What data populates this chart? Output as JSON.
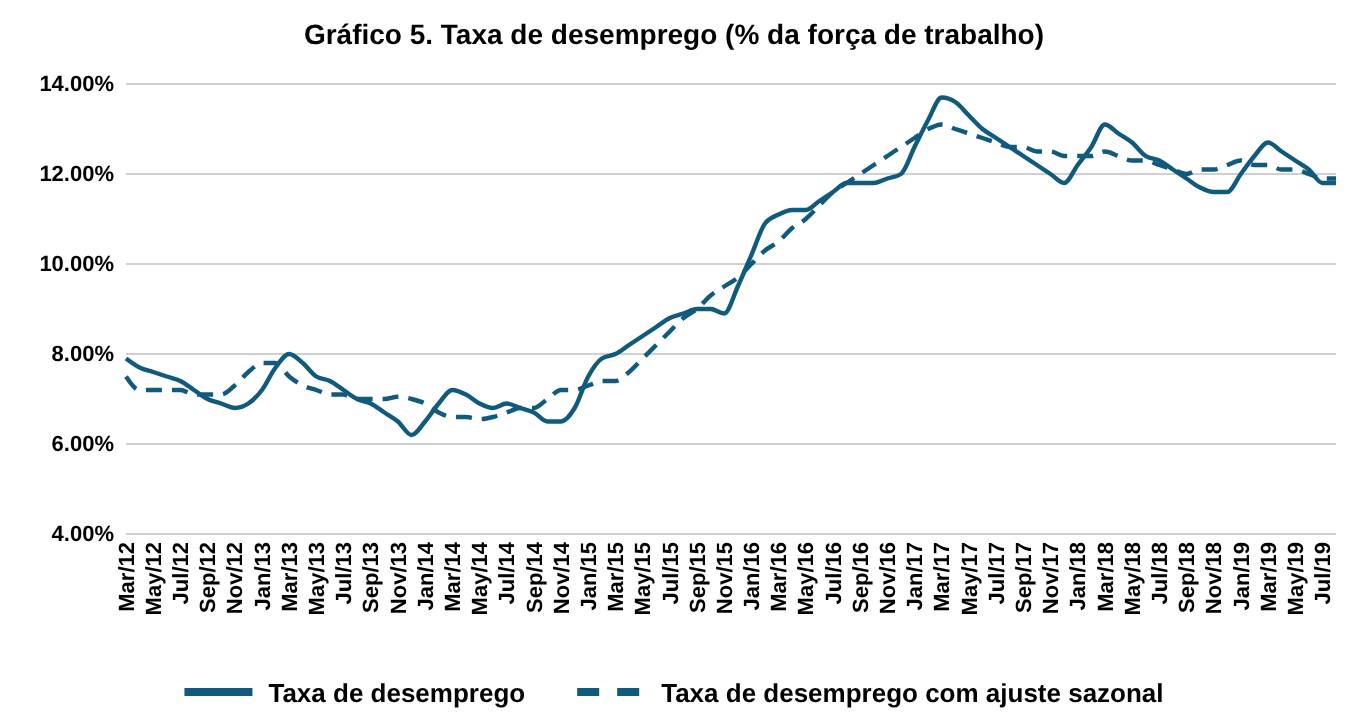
{
  "chart_data": {
    "type": "line",
    "title": "Gráfico 5. Taxa de desemprego (% da força de trabalho)",
    "categories": [
      "Mar/12",
      null,
      "May/12",
      null,
      "Jul/12",
      null,
      "Sep/12",
      null,
      "Nov/12",
      null,
      "Jan/13",
      null,
      "Mar/13",
      null,
      "May/13",
      null,
      "Jul/13",
      null,
      "Sep/13",
      null,
      "Nov/13",
      null,
      "Jan/14",
      null,
      "Mar/14",
      null,
      "May/14",
      null,
      "Jul/14",
      null,
      "Sep/14",
      null,
      "Nov/14",
      null,
      "Jan/15",
      null,
      "Mar/15",
      null,
      "May/15",
      null,
      "Jul/15",
      null,
      "Sep/15",
      null,
      "Nov/15",
      null,
      "Jan/16",
      null,
      "Mar/16",
      null,
      "May/16",
      null,
      "Jul/16",
      null,
      "Sep/16",
      null,
      "Nov/16",
      null,
      "Jan/17",
      null,
      "Mar/17",
      null,
      "May/17",
      null,
      "Jul/17",
      null,
      "Sep/17",
      null,
      "Nov/17",
      null,
      "Jan/18",
      null,
      "Mar/18",
      null,
      "May/18",
      null,
      "Jul/18",
      null,
      "Sep/18",
      null,
      "Nov/18",
      null,
      "Jan/19",
      null,
      "Mar/19",
      null,
      "May/19",
      null,
      "Jul/19",
      null
    ],
    "series": [
      {
        "name": "Taxa de desemprego",
        "color": "#0f5a7d",
        "line_style": "solid",
        "values": [
          7.9,
          7.7,
          7.6,
          7.5,
          7.4,
          7.2,
          7.0,
          6.9,
          6.8,
          6.9,
          7.2,
          7.7,
          8.0,
          7.8,
          7.5,
          7.4,
          7.2,
          7.0,
          6.9,
          6.7,
          6.5,
          6.2,
          6.5,
          6.9,
          7.2,
          7.1,
          6.9,
          6.8,
          6.9,
          6.8,
          6.7,
          6.5,
          6.5,
          6.8,
          7.5,
          7.9,
          8.0,
          8.2,
          8.4,
          8.6,
          8.8,
          8.9,
          9.0,
          9.0,
          8.9,
          9.5,
          10.2,
          10.9,
          11.1,
          11.2,
          11.2,
          11.4,
          11.6,
          11.8,
          11.8,
          11.8,
          11.9,
          12.0,
          12.6,
          13.2,
          13.7,
          13.6,
          13.3,
          13.0,
          12.8,
          12.6,
          12.4,
          12.2,
          12.0,
          11.8,
          12.2,
          12.6,
          13.1,
          12.9,
          12.7,
          12.4,
          12.3,
          12.1,
          11.9,
          11.7,
          11.6,
          11.6,
          12.0,
          12.4,
          12.7,
          12.5,
          12.3,
          12.1,
          11.8,
          11.8
        ]
      },
      {
        "name": "Taxa de desemprego com ajuste sazonal",
        "color": "#0f5a7d",
        "line_style": "dashed",
        "values": [
          7.5,
          7.2,
          7.2,
          7.2,
          7.2,
          7.1,
          7.1,
          7.1,
          7.3,
          7.6,
          7.8,
          7.8,
          7.5,
          7.3,
          7.2,
          7.1,
          7.1,
          7.0,
          7.0,
          7.0,
          7.05,
          7.0,
          6.9,
          6.7,
          6.6,
          6.6,
          6.55,
          6.6,
          6.7,
          6.8,
          6.8,
          7.0,
          7.2,
          7.2,
          7.3,
          7.4,
          7.4,
          7.6,
          7.9,
          8.2,
          8.5,
          8.8,
          9.0,
          9.3,
          9.5,
          9.7,
          10.0,
          10.3,
          10.5,
          10.8,
          11.0,
          11.3,
          11.6,
          11.8,
          12.0,
          12.2,
          12.4,
          12.6,
          12.8,
          13.0,
          13.1,
          13.0,
          12.9,
          12.8,
          12.7,
          12.6,
          12.6,
          12.5,
          12.5,
          12.4,
          12.4,
          12.4,
          12.5,
          12.4,
          12.3,
          12.3,
          12.2,
          12.1,
          12.0,
          12.1,
          12.1,
          12.2,
          12.3,
          12.2,
          12.2,
          12.1,
          12.1,
          12.0,
          11.9,
          11.9
        ]
      }
    ],
    "ylim": [
      4,
      14
    ],
    "yticks": [
      {
        "value": 4,
        "label": "4.00%"
      },
      {
        "value": 6,
        "label": "6.00%"
      },
      {
        "value": 8,
        "label": "8.00%"
      },
      {
        "value": 10,
        "label": "10.00%"
      },
      {
        "value": 12,
        "label": "12.00%"
      },
      {
        "value": 14,
        "label": "14.00%"
      }
    ],
    "grid": "y",
    "legend": "bottom",
    "marker": "none"
  }
}
